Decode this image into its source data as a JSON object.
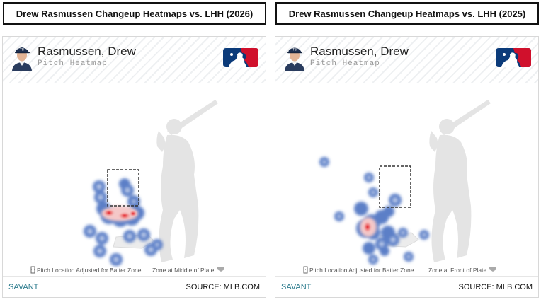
{
  "panels": [
    {
      "title": "Drew Rasmussen Changeup Heatmaps vs. LHH (2026)",
      "player_name": "Rasmussen, Drew",
      "subtitle": "Pitch Heatmap",
      "adjust_note": "Pitch Location Adjusted for Batter Zone",
      "zone_note": "Zone at Middle of Plate",
      "footer_left": "SAVANT",
      "footer_right": "SOURCE: MLB.COM"
    },
    {
      "title": "Drew Rasmussen Changeup Heatmaps vs. LHH (2025)",
      "player_name": "Rasmussen, Drew",
      "subtitle": "Pitch Heatmap",
      "adjust_note": "Pitch Location Adjusted for Batter Zone",
      "zone_note": "Zone at Front of Plate",
      "footer_left": "SAVANT",
      "footer_right": "SOURCE: MLB.COM"
    }
  ],
  "colors": {
    "cold": "#5b7fc7",
    "hot": "#e3262e",
    "brand_blue": "#0b3b7a",
    "brand_red": "#d0102c",
    "savant_text": "#2a7a8c",
    "silhouette": "#e3e3e3"
  },
  "icons": [
    "player-avatar",
    "mlb-logo-icon",
    "batter-silhouette",
    "strike-zone",
    "home-plate",
    "adjust-icon",
    "plate-icon"
  ]
}
